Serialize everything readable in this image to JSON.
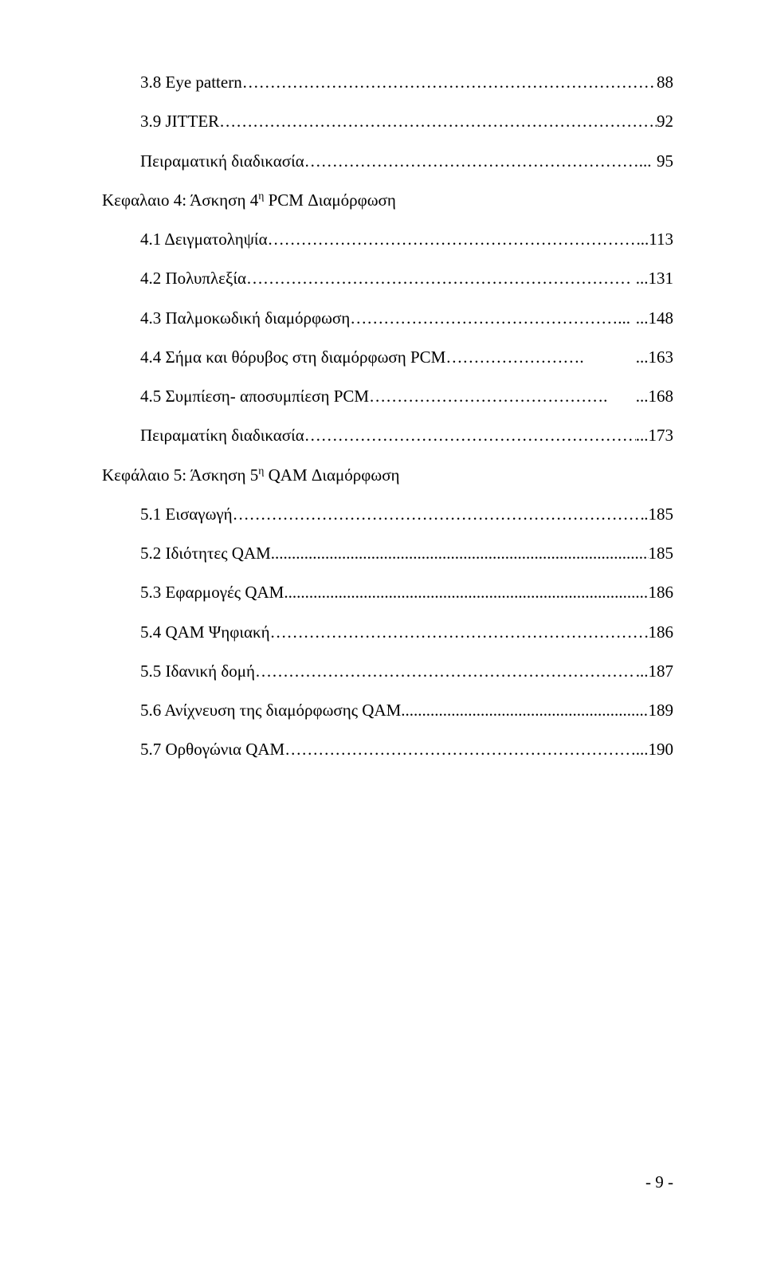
{
  "toc": [
    {
      "indent": true,
      "label": "3.8 Eye pattern ",
      "fill": "…………………………………………………………………...",
      "page": "88"
    },
    {
      "indent": true,
      "label": "3.9 JITTER ",
      "fill": "……………………………………………………………………...",
      "page": "92"
    },
    {
      "indent": true,
      "label": "Πειραματική διαδικασία ",
      "fill": "……………………………………………………...",
      "page": "95"
    },
    {
      "indent": false,
      "label": "Κεφαλαιο 4: Άσκηση 4<span class=\"sup\">η</span> PCM Διαμόρφωση",
      "fill": "",
      "page": ""
    },
    {
      "indent": true,
      "label": "4.1 Δειγματοληψία ",
      "fill": "………………………………………………………….",
      "page": "...113"
    },
    {
      "indent": true,
      "label": "4.2 Πολυπλεξία ",
      "fill": "……………………………………………………………",
      "page": "...131"
    },
    {
      "indent": true,
      "label": "4.3 Παλμοκωδική διαμόρφωση ",
      "fill": "…………………………………………...",
      "page": "...148"
    },
    {
      "indent": true,
      "label": "4.4 Σήμα και θόρυβος στη διαμόρφωση PCM ",
      "fill": "…………………….",
      "page": "...163"
    },
    {
      "indent": true,
      "label": "4.5 Συμπίεση- αποσυμπίεση PCM ",
      "fill": "…………………………………….",
      "page": "...168"
    },
    {
      "indent": true,
      "label": "Πειραματίκη διαδικασία ",
      "fill": "…………………………………………………….",
      "page": "...173"
    },
    {
      "indent": false,
      "label": "Κεφάλαιο 5: Άσκηση 5<span class=\"sup\">η</span> QAM Διαμόρφωση",
      "fill": "",
      "page": ""
    },
    {
      "indent": true,
      "label": "5.1 Εισαγωγή ",
      "fill": "…………………………………………………………………",
      "page": ".185"
    },
    {
      "indent": true,
      "label": "5.2 Ιδιότητες QAM ",
      "fill": "...............................................................................................",
      "page": "185"
    },
    {
      "indent": true,
      "label": "5.3 Εφαρμογές QAM ",
      "fill": ".............................................................................................",
      "page": "186"
    },
    {
      "indent": true,
      "label": "5.4 QAM Ψηφιακή ",
      "fill": "……………………………………………………………",
      "page": "186"
    },
    {
      "indent": true,
      "label": "5.5 Ιδανική δομή ",
      "fill": "………………………………………………………………",
      "page": "...187"
    },
    {
      "indent": true,
      "label": "5.6 Ανίχνευση της διαμόρφωσης QAM ",
      "fill": "............................................................",
      "page": "189"
    },
    {
      "indent": true,
      "label": "5.7 Ορθογώνια QAM ",
      "fill": "…………………………………………………………",
      "page": "...190"
    }
  ],
  "footer": "- 9 -"
}
